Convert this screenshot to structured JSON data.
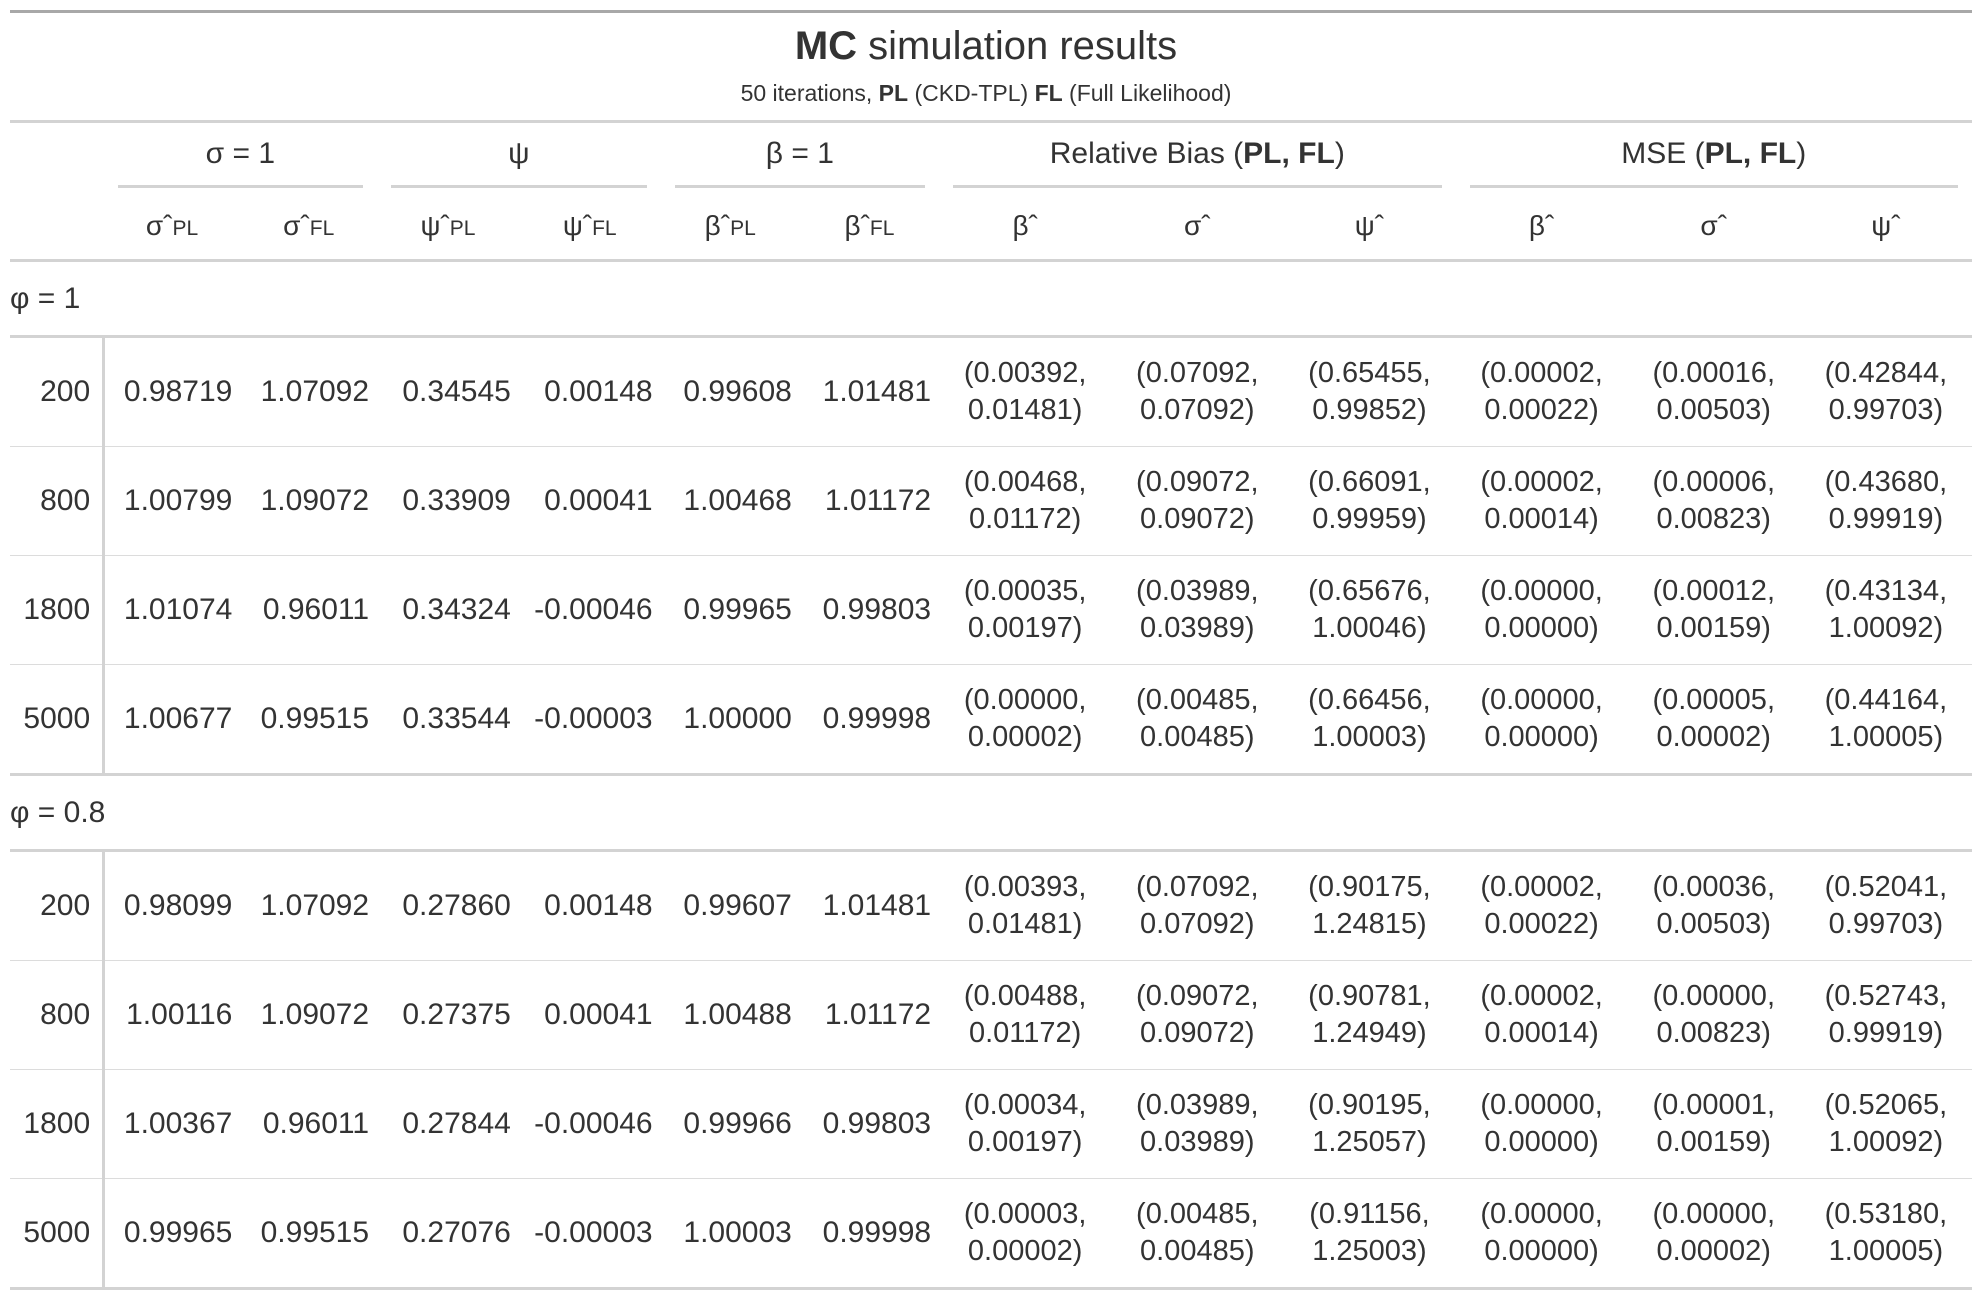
{
  "title": {
    "bold": "MC",
    "rest": " simulation results"
  },
  "subtitle": {
    "a": "50 iterations, ",
    "b": "PL",
    "c": " (CKD-TPL) ",
    "d": "FL",
    "e": " (Full Likelihood)"
  },
  "spanners": {
    "sigma": "σ = 1",
    "psi": "ψ",
    "beta": "β = 1",
    "rb_prefix": "Relative Bias (",
    "rb_bold": "PL, FL",
    "rb_suffix": ")",
    "mse_prefix": "MSE (",
    "mse_bold": "PL, FL",
    "mse_suffix": ")"
  },
  "columns": [
    {
      "sym": "σˆ",
      "sub": "PL"
    },
    {
      "sym": "σˆ",
      "sub": "FL"
    },
    {
      "sym": "ψˆ",
      "sub": "PL"
    },
    {
      "sym": "ψˆ",
      "sub": "FL"
    },
    {
      "sym": "βˆ",
      "sub": "PL"
    },
    {
      "sym": "βˆ",
      "sub": "FL"
    },
    {
      "sym": "βˆ",
      "sub": ""
    },
    {
      "sym": "σˆ",
      "sub": ""
    },
    {
      "sym": "ψˆ",
      "sub": ""
    },
    {
      "sym": "βˆ",
      "sub": ""
    },
    {
      "sym": "σˆ",
      "sub": ""
    },
    {
      "sym": "ψˆ",
      "sub": ""
    }
  ],
  "groups": [
    {
      "label": "φ = 1",
      "rows": [
        {
          "n": "200",
          "vals": [
            "0.98719",
            "1.07092",
            "0.34545",
            "0.00148",
            "0.99608",
            "1.01481"
          ],
          "pairs": [
            "(0.00392,\n0.01481)",
            "(0.07092,\n0.07092)",
            "(0.65455,\n0.99852)",
            "(0.00002,\n0.00022)",
            "(0.00016,\n0.00503)",
            "(0.42844,\n0.99703)"
          ]
        },
        {
          "n": "800",
          "vals": [
            "1.00799",
            "1.09072",
            "0.33909",
            "0.00041",
            "1.00468",
            "1.01172"
          ],
          "pairs": [
            "(0.00468,\n0.01172)",
            "(0.09072,\n0.09072)",
            "(0.66091,\n0.99959)",
            "(0.00002,\n0.00014)",
            "(0.00006,\n0.00823)",
            "(0.43680,\n0.99919)"
          ]
        },
        {
          "n": "1800",
          "vals": [
            "1.01074",
            "0.96011",
            "0.34324",
            "-0.00046",
            "0.99965",
            "0.99803"
          ],
          "pairs": [
            "(0.00035,\n0.00197)",
            "(0.03989,\n0.03989)",
            "(0.65676,\n1.00046)",
            "(0.00000,\n0.00000)",
            "(0.00012,\n0.00159)",
            "(0.43134,\n1.00092)"
          ]
        },
        {
          "n": "5000",
          "vals": [
            "1.00677",
            "0.99515",
            "0.33544",
            "-0.00003",
            "1.00000",
            "0.99998"
          ],
          "pairs": [
            "(0.00000,\n0.00002)",
            "(0.00485,\n0.00485)",
            "(0.66456,\n1.00003)",
            "(0.00000,\n0.00000)",
            "(0.00005,\n0.00002)",
            "(0.44164,\n1.00005)"
          ]
        }
      ]
    },
    {
      "label": "φ = 0.8",
      "rows": [
        {
          "n": "200",
          "vals": [
            "0.98099",
            "1.07092",
            "0.27860",
            "0.00148",
            "0.99607",
            "1.01481"
          ],
          "pairs": [
            "(0.00393,\n0.01481)",
            "(0.07092,\n0.07092)",
            "(0.90175,\n1.24815)",
            "(0.00002,\n0.00022)",
            "(0.00036,\n0.00503)",
            "(0.52041,\n0.99703)"
          ]
        },
        {
          "n": "800",
          "vals": [
            "1.00116",
            "1.09072",
            "0.27375",
            "0.00041",
            "1.00488",
            "1.01172"
          ],
          "pairs": [
            "(0.00488,\n0.01172)",
            "(0.09072,\n0.09072)",
            "(0.90781,\n1.24949)",
            "(0.00002,\n0.00014)",
            "(0.00000,\n0.00823)",
            "(0.52743,\n0.99919)"
          ]
        },
        {
          "n": "1800",
          "vals": [
            "1.00367",
            "0.96011",
            "0.27844",
            "-0.00046",
            "0.99966",
            "0.99803"
          ],
          "pairs": [
            "(0.00034,\n0.00197)",
            "(0.03989,\n0.03989)",
            "(0.90195,\n1.25057)",
            "(0.00000,\n0.00000)",
            "(0.00001,\n0.00159)",
            "(0.52065,\n1.00092)"
          ]
        },
        {
          "n": "5000",
          "vals": [
            "0.99965",
            "0.99515",
            "0.27076",
            "-0.00003",
            "1.00003",
            "0.99998"
          ],
          "pairs": [
            "(0.00003,\n0.00002)",
            "(0.00485,\n0.00485)",
            "(0.91156,\n1.25003)",
            "(0.00000,\n0.00000)",
            "(0.00000,\n0.00002)",
            "(0.53180,\n1.00005)"
          ]
        }
      ]
    }
  ]
}
